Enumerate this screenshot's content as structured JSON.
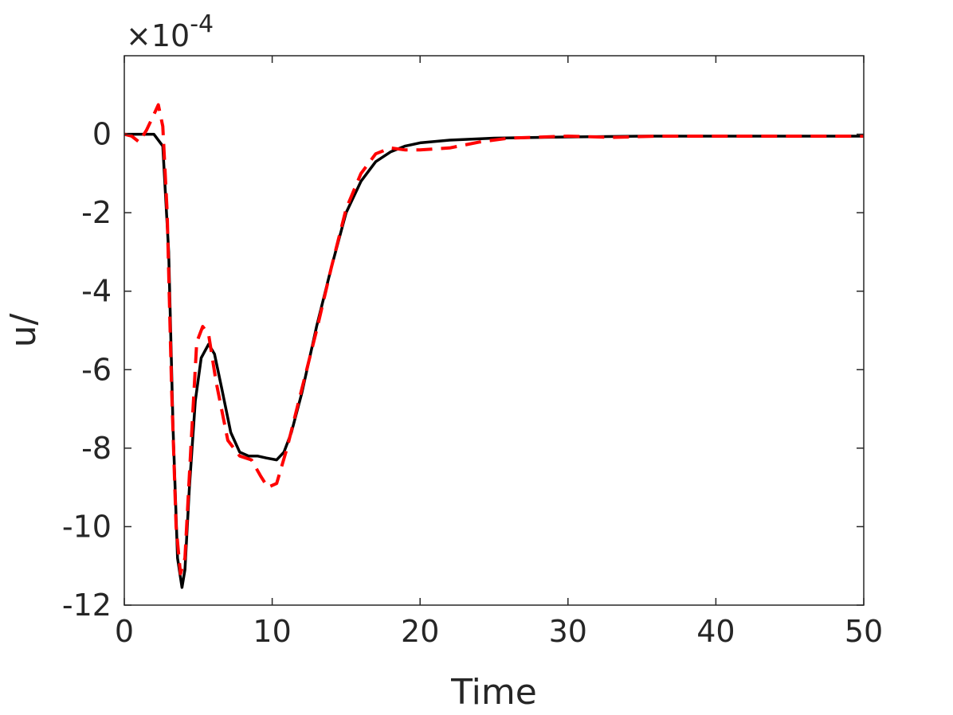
{
  "chart_data": {
    "type": "line",
    "xlabel": "Time",
    "ylabel": "u/",
    "exponent_label": "×10^-4",
    "exponent_base": "×10",
    "exponent_power": "-4",
    "xlim": [
      0,
      50
    ],
    "ylim": [
      -12,
      2
    ],
    "x_ticks": [
      0,
      10,
      20,
      30,
      40,
      50
    ],
    "x_tick_labels": [
      "0",
      "10",
      "20",
      "30",
      "40",
      "50"
    ],
    "y_ticks": [
      0,
      -2,
      -4,
      -6,
      -8,
      -10,
      -12
    ],
    "y_tick_labels": [
      "0",
      "-2",
      "-4",
      "-6",
      "-8",
      "-10",
      "-12"
    ],
    "grid": false,
    "legend": "none",
    "series": [
      {
        "style": "solid",
        "color": "#000000",
        "x": [
          0,
          1,
          2,
          2.6,
          3.0,
          3.3,
          3.6,
          3.9,
          4.1,
          4.4,
          4.8,
          5.2,
          5.7,
          6.1,
          6.6,
          7.2,
          7.8,
          8.4,
          9.0,
          9.6,
          10.3,
          10.8,
          11.3,
          12.0,
          13.0,
          14.0,
          15.0,
          16.0,
          17.0,
          18.0,
          19.0,
          20.0,
          22.0,
          25.0,
          30.0,
          35.0,
          40.0,
          45.0,
          50.0
        ],
        "y": [
          0,
          0,
          0,
          -0.3,
          -3.0,
          -7.5,
          -10.8,
          -11.55,
          -11.1,
          -9.0,
          -6.8,
          -5.7,
          -5.35,
          -5.6,
          -6.5,
          -7.6,
          -8.1,
          -8.2,
          -8.2,
          -8.25,
          -8.3,
          -8.1,
          -7.6,
          -6.6,
          -4.9,
          -3.4,
          -2.0,
          -1.2,
          -0.7,
          -0.45,
          -0.3,
          -0.22,
          -0.15,
          -0.1,
          -0.07,
          -0.05,
          -0.05,
          -0.05,
          -0.05
        ]
      },
      {
        "style": "dashed",
        "color": "#ff0000",
        "x": [
          0,
          0.5,
          1.0,
          1.5,
          2.0,
          2.3,
          2.6,
          2.9,
          3.2,
          3.5,
          3.8,
          4.1,
          4.5,
          4.9,
          5.3,
          5.7,
          6.2,
          7.0,
          7.8,
          8.6,
          9.2,
          9.7,
          10.3,
          11.0,
          12.0,
          13.0,
          14.0,
          15.0,
          16.0,
          17.0,
          18.0,
          19.0,
          20.0,
          22.0,
          24.0,
          26.0,
          30.0,
          33.0,
          36.0,
          40.0,
          45.0,
          50.0
        ],
        "y": [
          0,
          -0.05,
          -0.2,
          0.1,
          0.5,
          0.75,
          0.2,
          -2.0,
          -6.5,
          -10.0,
          -11.2,
          -10.8,
          -8.0,
          -5.3,
          -4.9,
          -5.1,
          -6.3,
          -7.8,
          -8.2,
          -8.3,
          -8.7,
          -9.0,
          -8.9,
          -8.0,
          -6.5,
          -5.0,
          -3.4,
          -1.9,
          -1.0,
          -0.5,
          -0.35,
          -0.4,
          -0.4,
          -0.35,
          -0.2,
          -0.1,
          -0.05,
          -0.08,
          -0.05,
          -0.05,
          -0.05,
          -0.05
        ]
      }
    ]
  }
}
